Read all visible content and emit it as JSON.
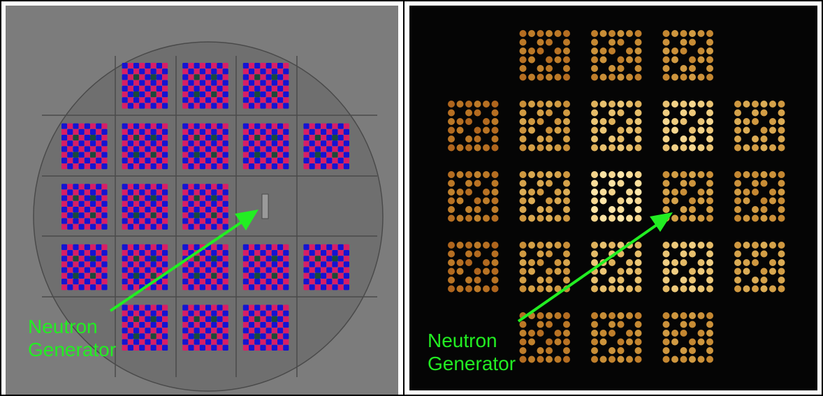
{
  "colors": {
    "frame": "#000000",
    "left_background": "#7c7c7c",
    "core_disk": "#6f6f6f",
    "grid_line": "#4a4a4a",
    "pin_blue": "#1414d2",
    "pin_magenta": "#d81e66",
    "pin_guide": "#1a4a3a",
    "generator_slot": "#9a9a9a",
    "right_background": "#050505",
    "arrow": "#22ee22",
    "label": "#22ee22"
  },
  "left_panel": {
    "label_line1": "Neutron",
    "label_line2": "Generator",
    "assembly_rows": [
      [
        null,
        "a",
        "a",
        "a",
        null
      ],
      [
        "a",
        "a",
        "a",
        "a",
        "a"
      ],
      [
        "a",
        "a",
        "a",
        "generator",
        null
      ],
      [
        "a",
        "a",
        "a",
        "a",
        "a"
      ],
      [
        null,
        "a",
        "a",
        "a",
        null
      ]
    ]
  },
  "right_panel": {
    "label_line1": "Neutron",
    "label_line2": "Generator",
    "assembly_intensity": [
      [
        null,
        0.35,
        0.45,
        0.5,
        null
      ],
      [
        0.3,
        0.55,
        0.75,
        0.85,
        0.6
      ],
      [
        0.35,
        0.6,
        0.95,
        0.55,
        0.5
      ],
      [
        0.3,
        0.55,
        0.75,
        0.8,
        0.6
      ],
      [
        null,
        0.35,
        0.45,
        0.5,
        null
      ]
    ]
  }
}
